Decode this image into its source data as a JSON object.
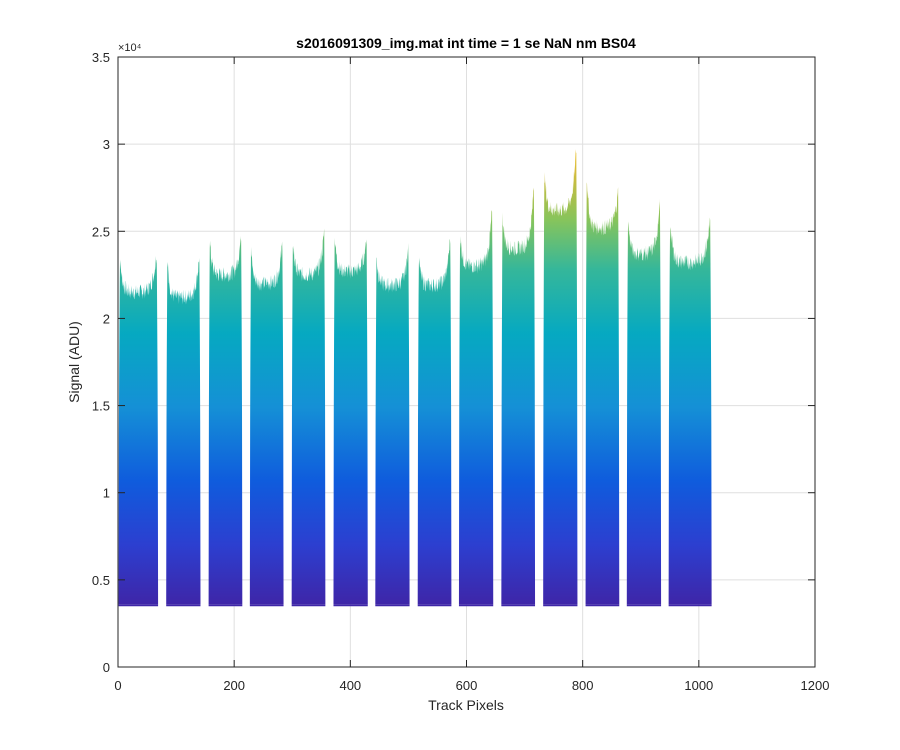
{
  "chart_data": {
    "type": "area",
    "title": "s2016091309_img.mat int time = 1 se  NaN nm BS04",
    "xlabel": "Track Pixels",
    "ylabel": "Signal (ADU)",
    "y_exponent_label": "×10⁴",
    "xlim": [
      0,
      1200
    ],
    "ylim": [
      0,
      35000
    ],
    "x_ticks": [
      0,
      200,
      400,
      600,
      800,
      1000,
      1200
    ],
    "x_tick_labels": [
      "0",
      "200",
      "400",
      "600",
      "800",
      "1000",
      "1200"
    ],
    "y_ticks": [
      0,
      5000,
      10000,
      15000,
      20000,
      25000,
      30000,
      35000
    ],
    "y_tick_labels": [
      "0",
      "0.5",
      "1",
      "1.5",
      "2",
      "2.5",
      "3",
      "3.5"
    ],
    "grid": true,
    "colormap": [
      "#3e26a8",
      "#0f5cdd",
      "#1a9ecf",
      "#2ab7a8",
      "#86c45c",
      "#d5bb3a",
      "#f9d326",
      "#f9fb0e"
    ],
    "baseline": 3600,
    "x_range": [
      0,
      1024
    ],
    "segments": [
      {
        "x0": 1,
        "x1": 69,
        "left_peak": 25000,
        "right_peak": 25000,
        "mid": 21500,
        "dip_min": 3800
      },
      {
        "x0": 83,
        "x1": 142,
        "left_peak": 25000,
        "right_peak": 24800,
        "mid": 21200,
        "dip_min": 3900
      },
      {
        "x0": 156,
        "x1": 214,
        "left_peak": 26100,
        "right_peak": 26100,
        "mid": 22500,
        "dip_min": 3900
      },
      {
        "x0": 227,
        "x1": 285,
        "left_peak": 25500,
        "right_peak": 25600,
        "mid": 22000,
        "dip_min": 3900
      },
      {
        "x0": 299,
        "x1": 357,
        "left_peak": 26100,
        "right_peak": 26400,
        "mid": 22500,
        "dip_min": 3900
      },
      {
        "x0": 371,
        "x1": 430,
        "left_peak": 26500,
        "right_peak": 25700,
        "mid": 22700,
        "dip_min": 3900
      },
      {
        "x0": 443,
        "x1": 502,
        "left_peak": 25000,
        "right_peak": 25200,
        "mid": 21900,
        "dip_min": 3900
      },
      {
        "x0": 516,
        "x1": 574,
        "left_peak": 24900,
        "right_peak": 26100,
        "mid": 21900,
        "dip_min": 3900
      },
      {
        "x0": 587,
        "x1": 646,
        "left_peak": 26500,
        "right_peak": 28000,
        "mid": 23000,
        "dip_min": 3900
      },
      {
        "x0": 660,
        "x1": 718,
        "left_peak": 27500,
        "right_peak": 29600,
        "mid": 24000,
        "dip_min": 3900
      },
      {
        "x0": 732,
        "x1": 791,
        "left_peak": 30300,
        "right_peak": 31800,
        "mid": 26200,
        "dip_min": 3900
      },
      {
        "x0": 805,
        "x1": 863,
        "left_peak": 30700,
        "right_peak": 28500,
        "mid": 25200,
        "dip_min": 3900
      },
      {
        "x0": 876,
        "x1": 935,
        "left_peak": 27500,
        "right_peak": 28300,
        "mid": 23700,
        "dip_min": 3900
      },
      {
        "x0": 948,
        "x1": 1022,
        "left_peak": 27500,
        "right_peak": 26900,
        "mid": 23200,
        "dip_min": 3900
      }
    ]
  }
}
